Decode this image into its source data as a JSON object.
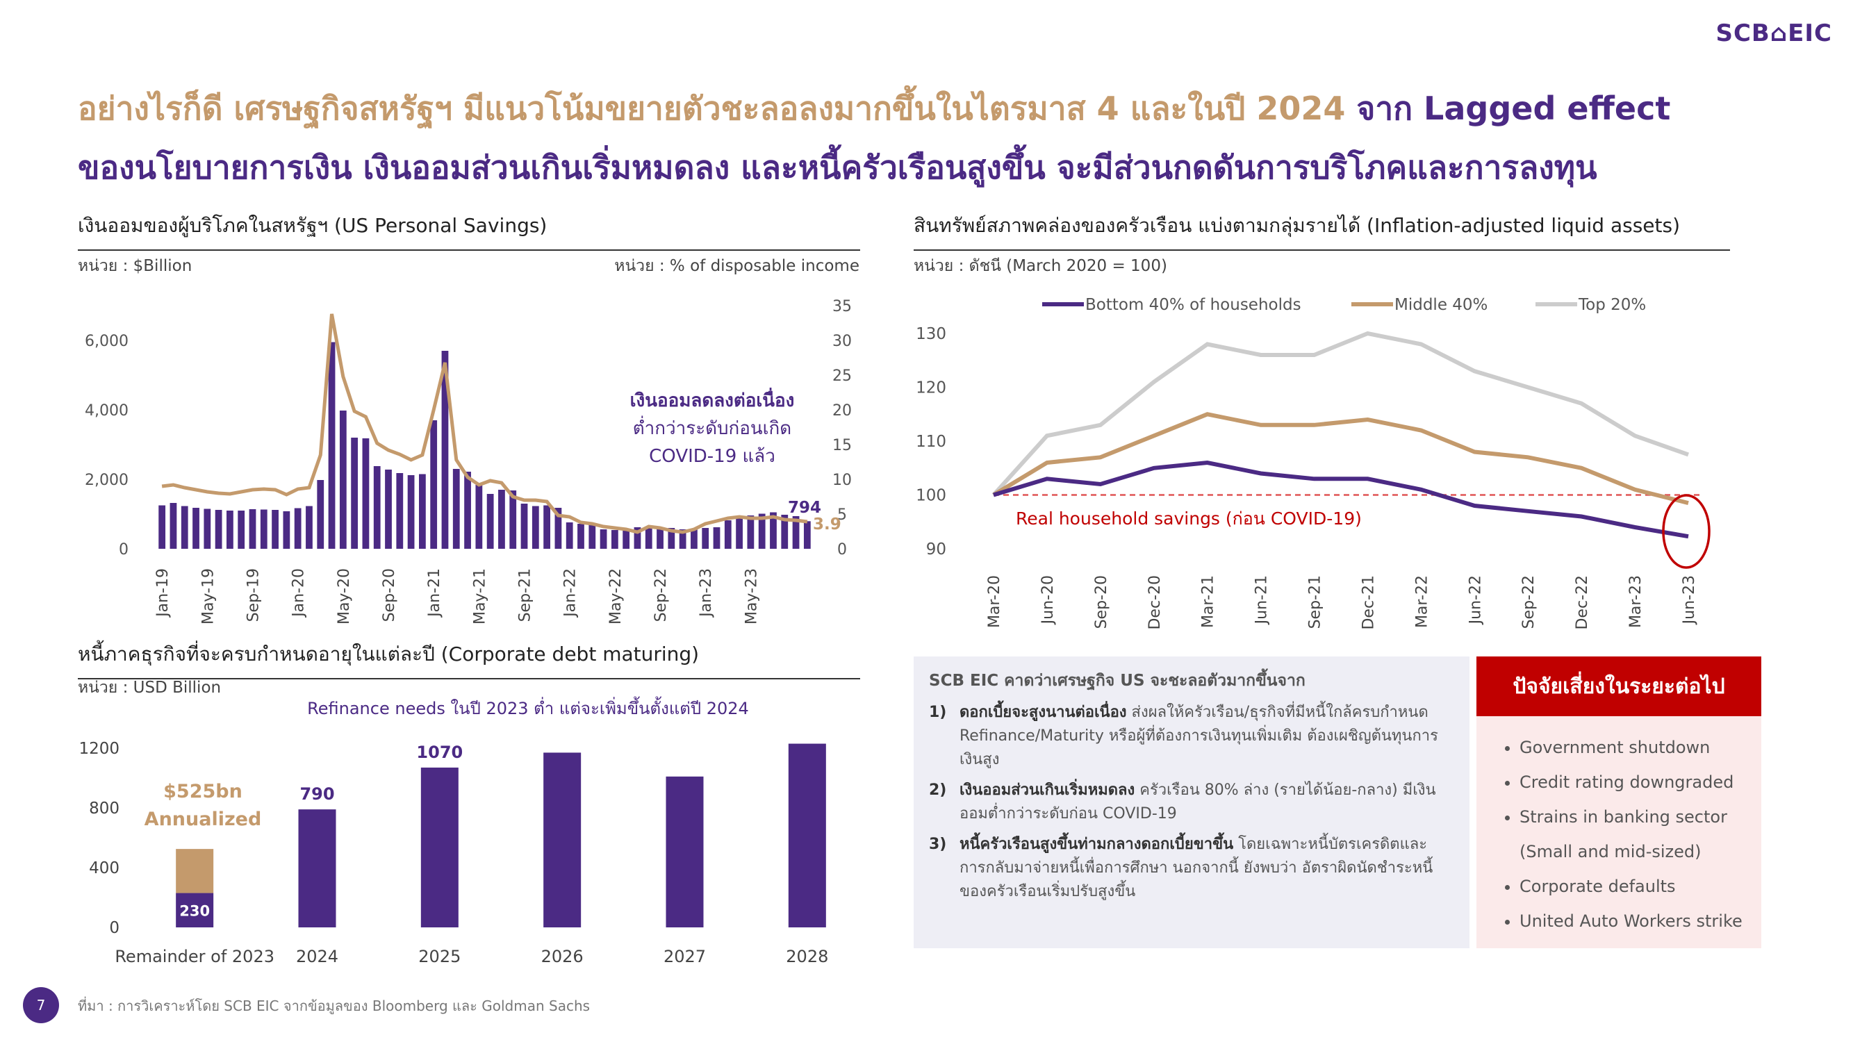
{
  "logo": "SCB⌂EIC",
  "title": {
    "line1_main": "อย่างไรก็ดี เศรษฐกิจสหรัฐฯ มีแนวโน้มขยายตัวชะลอลงมากขึ้นในไตรมาส 4 และในปี 2024",
    "line1_tail": " จาก Lagged effect",
    "line2": "ของนโยบายการเงิน เงินออมส่วนเกินเริ่มหมดลง และหนี้ครัวเรือนสูงขึ้น จะมีส่วนกดดันการบริโภคและการลงทุน"
  },
  "colors": {
    "purple": "#4b2a84",
    "gold": "#c49a6c",
    "gray": "#cccccc",
    "red": "#c00000",
    "dashed": "#e05555"
  },
  "savings": {
    "section_title": "เงินออมของผู้บริโภคในสหรัฐฯ (US Personal Savings)",
    "unit_left": "หน่วย : $Billion",
    "unit_right": "หน่วย : % of disposable income",
    "annotation_bold": "เงินออมลดลงต่อเนื่อง",
    "annotation_line2": "ต่ำกว่าระดับก่อนเกิด",
    "annotation_line3": "COVID-19 แล้ว",
    "last_bar_label": "794",
    "last_rate_label": "3.9"
  },
  "liquid": {
    "section_title": "สินทรัพย์สภาพคล่องของครัวเรือน แบ่งตามกลุ่มรายได้ (Inflation-adjusted liquid assets)",
    "unit": "หน่วย : ดัชนี (March 2020 = 100)",
    "ref_label": "Real household savings (ก่อน COVID-19)"
  },
  "debt": {
    "section_title": "หนี้ภาคธุรกิจที่จะครบกำหนดอายุในแต่ละปี (Corporate debt maturing)",
    "unit": "หน่วย : USD Billion",
    "headline": "Refinance needs ในปี 2023 ต่ำ แต่จะเพิ่มขึ้นตั้งแต่ปี 2024",
    "annualized_line1": "$525bn",
    "annualized_line2": "Annualized"
  },
  "outlook": {
    "heading": "SCB EIC คาดว่าเศรษฐกิจ US จะชะลอตัวมากขึ้นจาก",
    "items": [
      {
        "num": "1)",
        "bold": "ดอกเบี้ยจะสูงนานต่อเนื่อง",
        "text": " ส่งผลให้ครัวเรือน/ธุรกิจที่มีหนี้ใกล้ครบกำหนด Refinance/Maturity หรือผู้ที่ต้องการเงินทุนเพิ่มเติม ต้องเผชิญต้นทุนการเงินสูง"
      },
      {
        "num": "2)",
        "bold": "เงินออมส่วนเกินเริ่มหมดลง",
        "text": " ครัวเรือน 80% ล่าง (รายได้น้อย-กลาง) มีเงินออมต่ำกว่าระดับก่อน COVID-19"
      },
      {
        "num": "3)",
        "bold": "หนี้ครัวเรือนสูงขึ้นท่ามกลางดอกเบี้ยขาขึ้น",
        "text": " โดยเฉพาะหนี้บัตรเครดิตและการกลับมาจ่ายหนี้เพื่อการศึกษา นอกจากนี้ ยังพบว่า อัตราผิดนัดชำระหนี้ของครัวเรือนเริ่มปรับสูงขึ้น"
      }
    ]
  },
  "risks": {
    "heading": "ปัจจัยเสี่ยงในระยะต่อไป",
    "items": [
      "Government shutdown",
      "Credit rating downgraded",
      "Strains in banking sector",
      "(Small and mid-sized)",
      "Corporate defaults",
      "United Auto Workers strike"
    ]
  },
  "footer": {
    "page": "7",
    "source": "ที่มา : การวิเคราะห์โดย SCB EIC จากข้อมูลของ Bloomberg และ Goldman Sachs"
  },
  "chart_data": [
    {
      "type": "bar",
      "title": "เงินออมของผู้บริโภคในสหรัฐฯ (US Personal Savings)",
      "x_tick_labels": [
        "Jan-19",
        "May-19",
        "Sep-19",
        "Jan-20",
        "May-20",
        "Sep-20",
        "Jan-21",
        "May-21",
        "Sep-21",
        "Jan-22",
        "May-22",
        "Sep-22",
        "Jan-23",
        "May-23"
      ],
      "y_ticks_left": [
        "0",
        "2,000",
        "4,000",
        "6,000"
      ],
      "y_ticks_right": [
        "0",
        "5",
        "10",
        "15",
        "20",
        "25",
        "30",
        "35"
      ],
      "ylim_left": [
        0,
        7000
      ],
      "ylim_right": [
        0,
        35
      ],
      "series": [
        {
          "kind": "bar",
          "axis": "left",
          "values": [
            1250,
            1320,
            1230,
            1180,
            1150,
            1120,
            1100,
            1100,
            1140,
            1130,
            1120,
            1080,
            1170,
            1230,
            1980,
            5950,
            3980,
            3200,
            3180,
            2380,
            2280,
            2180,
            2120,
            2150,
            3700,
            5700,
            2300,
            2220,
            1840,
            1580,
            1700,
            1680,
            1300,
            1230,
            1250,
            1180,
            760,
            720,
            720,
            560,
            540,
            580,
            620,
            600,
            610,
            600,
            560,
            560,
            600,
            620,
            820,
            880,
            960,
            1010,
            1050,
            980,
            940,
            794
          ]
        },
        {
          "kind": "line",
          "axis": "right",
          "values": [
            9.0,
            9.2,
            8.8,
            8.5,
            8.2,
            8.0,
            7.9,
            8.2,
            8.5,
            8.6,
            8.5,
            7.8,
            8.6,
            8.8,
            13.5,
            33.8,
            24.8,
            19.8,
            19.0,
            15.2,
            14.2,
            13.6,
            12.8,
            13.5,
            20.0,
            26.8,
            12.8,
            10.3,
            9.2,
            9.8,
            9.5,
            7.5,
            7.0,
            7.0,
            6.8,
            4.8,
            4.6,
            3.8,
            3.6,
            3.2,
            3.0,
            2.8,
            2.4,
            3.2,
            3.0,
            2.6,
            2.4,
            2.8,
            3.6,
            4.0,
            4.4,
            4.6,
            4.4,
            4.4,
            4.6,
            4.2,
            4.1,
            3.9
          ]
        }
      ]
    },
    {
      "type": "line",
      "title": "สินทรัพย์สภาพคล่องของครัวเรือน แบ่งตามกลุ่มรายได้ (Inflation-adjusted liquid assets)",
      "categories": [
        "Mar-20",
        "Jun-20",
        "Sep-20",
        "Dec-20",
        "Mar-21",
        "Jun-21",
        "Sep-21",
        "Dec-21",
        "Mar-22",
        "Jun-22",
        "Sep-22",
        "Dec-22",
        "Mar-23",
        "Jun-23"
      ],
      "ylim": [
        90,
        130
      ],
      "y_ticks": [
        90,
        100,
        110,
        120,
        130
      ],
      "reference_line": 100,
      "series": [
        {
          "name": "Bottom 40% of households",
          "values": [
            100,
            103,
            102,
            105,
            106,
            104,
            103,
            103,
            101,
            98,
            97,
            96,
            94,
            92.3
          ]
        },
        {
          "name": "Middle 40%",
          "values": [
            100,
            106,
            107,
            111,
            115,
            113,
            113,
            114,
            112,
            108,
            107,
            105,
            101,
            98.5
          ]
        },
        {
          "name": "Top 20%",
          "values": [
            100,
            111,
            113,
            121,
            128,
            126,
            126,
            130,
            128,
            123,
            120,
            117,
            111,
            107.5
          ]
        }
      ]
    },
    {
      "type": "bar",
      "title": "หนี้ภาคธุรกิจที่จะครบกำหนดอายุในแต่ละปี (Corporate debt maturing)",
      "categories": [
        "Remainder of 2023",
        "2024",
        "2025",
        "2026",
        "2027",
        "2028"
      ],
      "ylim": [
        0,
        1200
      ],
      "y_ticks": [
        0,
        400,
        800,
        1200
      ],
      "series": [
        {
          "name": "Maturing",
          "values": [
            230,
            790,
            1070,
            1170,
            1010,
            1230
          ],
          "labels": [
            "230",
            "790",
            "1070",
            "",
            "",
            ""
          ]
        },
        {
          "name": "Annualized",
          "values": [
            295,
            0,
            0,
            0,
            0,
            0
          ]
        }
      ]
    }
  ]
}
